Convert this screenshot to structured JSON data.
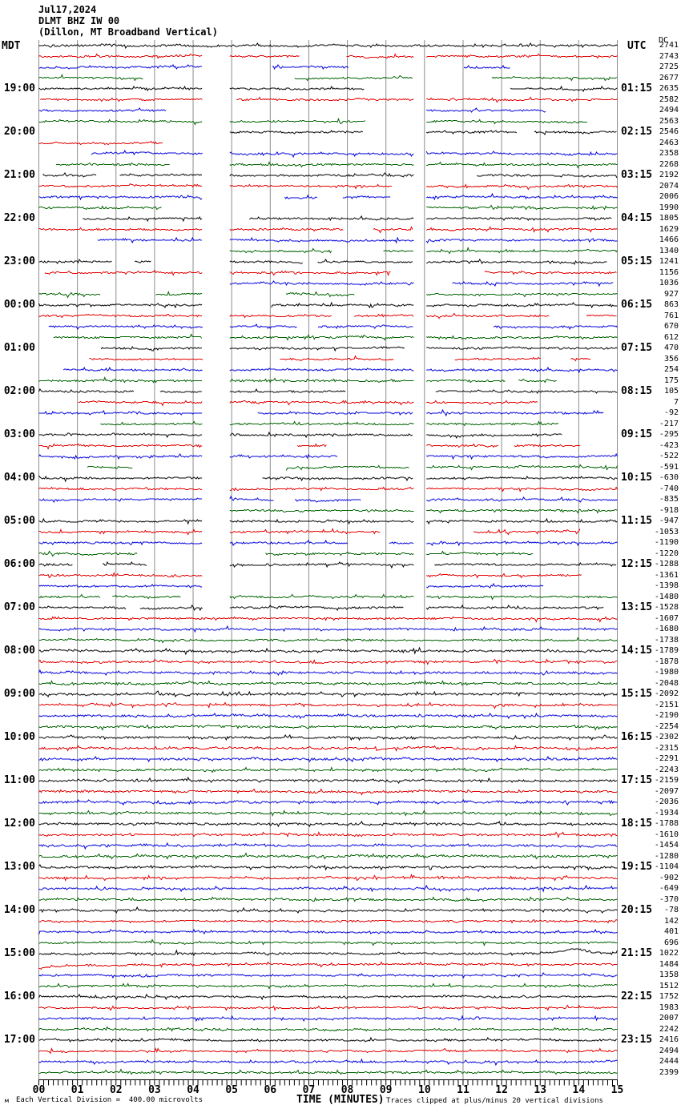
{
  "header": {
    "date": "Jul17,2024",
    "station": "DLMT BHZ IW 00",
    "description": "(Dillon, MT Broadband Vertical)"
  },
  "axes": {
    "left_label": "MDT",
    "right_label": "UTC",
    "dc_label": "DC",
    "x_title": "TIME (MINUTES)",
    "x_tick_labels": [
      "00",
      "01",
      "02",
      "03",
      "04",
      "05",
      "06",
      "07",
      "08",
      "09",
      "10",
      "11",
      "12",
      "13",
      "14",
      "15"
    ],
    "footer_left": "Each Vertical Division =  400.00 microvolts",
    "footer_right": "Traces clipped at plus/minus 20 vertical divisions",
    "corner_mark": "м"
  },
  "chart_data": {
    "type": "line",
    "kind": "helicorder-seismogram",
    "title": "DLMT BHZ IW 00 (Dillon, MT Broadband Vertical) Jul17,2024",
    "xlabel": "TIME (MINUTES)",
    "x_range_minutes": [
      0,
      15
    ],
    "minutes_per_row": 15,
    "row_count": 96,
    "rows_per_hour": 4,
    "first_labeled_row_index": 4,
    "color_cycle": [
      "black",
      "red",
      "blue",
      "green"
    ],
    "trace_colors": {
      "black": "#000000",
      "red": "#e60000",
      "blue": "#0000dd",
      "green": "#006400"
    },
    "grid_color": "#8c8c8c",
    "left_hour_labels_mdt": [
      "19:00",
      "20:00",
      "21:00",
      "22:00",
      "23:00",
      "00:00",
      "01:00",
      "02:00",
      "03:00",
      "04:00",
      "05:00",
      "06:00",
      "07:00",
      "08:00",
      "09:00",
      "10:00",
      "11:00",
      "12:00",
      "13:00",
      "14:00",
      "15:00",
      "16:00",
      "17:00"
    ],
    "right_hour_labels_utc": [
      "01:15",
      "02:15",
      "03:15",
      "04:15",
      "05:15",
      "06:15",
      "07:15",
      "08:15",
      "09:15",
      "10:15",
      "11:15",
      "12:15",
      "13:15",
      "14:15",
      "15:15",
      "16:15",
      "17:15",
      "18:15",
      "19:15",
      "20:15",
      "21:15",
      "22:15",
      "23:15"
    ],
    "dc_offsets": [
      2741,
      2743,
      2725,
      2677,
      2635,
      2582,
      2494,
      2563,
      2546,
      2463,
      2358,
      2268,
      2192,
      2074,
      2006,
      1990,
      1805,
      1629,
      1466,
      1340,
      1241,
      1156,
      1036,
      927,
      863,
      761,
      670,
      612,
      470,
      356,
      254,
      175,
      105,
      7,
      -92,
      -217,
      -295,
      -423,
      -522,
      -591,
      -630,
      -740,
      -835,
      -918,
      -947,
      -1053,
      -1190,
      -1220,
      -1288,
      -1361,
      -1398,
      -1480,
      -1528,
      -1607,
      -1680,
      -1738,
      -1789,
      -1878,
      -1980,
      -2048,
      -2092,
      -2151,
      -2190,
      -2254,
      -2302,
      -2315,
      -2291,
      -2243,
      -2159,
      -2097,
      -2036,
      -1934,
      -1788,
      -1610,
      -1454,
      -1280,
      -1104,
      -902,
      -649,
      -370,
      -78,
      142,
      401,
      696,
      1022,
      1484,
      1358,
      1512,
      1752,
      1983,
      2007,
      2242,
      2416,
      2494,
      2444,
      2399
    ],
    "data_gap_bands_minutes": [
      [
        4.25,
        4.95
      ],
      [
        9.72,
        10.05
      ]
    ],
    "gappy_rows_through_index": 52,
    "units_per_vertical_division": "400.00 microvolts",
    "clip_limit_divisions": 20
  }
}
